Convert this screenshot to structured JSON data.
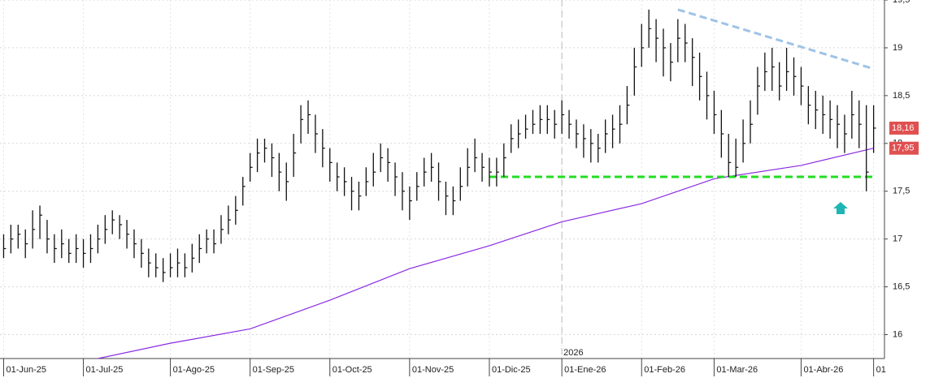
{
  "chart_data": {
    "type": "ohlc",
    "color": "#111111",
    "ylim": [
      15.75,
      19.5
    ],
    "yticks": [
      16,
      {
        "value": 16.5,
        "label": "16,5"
      },
      17,
      {
        "value": 17.5,
        "label": "17,5"
      },
      18,
      {
        "value": 18.5,
        "label": "18,5"
      },
      19,
      {
        "value": 19.5,
        "label": "19,5"
      }
    ],
    "xlim": [
      -0.5,
      121.5
    ],
    "xticks": [
      {
        "value": 0,
        "label": "01-Jun-25"
      },
      {
        "value": 11,
        "label": "01-Jul-25"
      },
      {
        "value": 23,
        "label": "01-Ago-25"
      },
      {
        "value": 34,
        "label": "01-Sep-25"
      },
      {
        "value": 45,
        "label": "01-Oct-25"
      },
      {
        "value": 56,
        "label": "01-Nov-25"
      },
      {
        "value": 67,
        "label": "01-Dic-25"
      },
      {
        "value": 77,
        "label": "01-Ene-26"
      },
      {
        "value": 88,
        "label": "01-Feb-26"
      },
      {
        "value": 98,
        "label": "01-Mar-26"
      },
      {
        "value": 110,
        "label": "01-Abr-26"
      },
      {
        "value": 120,
        "label": "01"
      }
    ],
    "grid": true,
    "year_marker": {
      "x": 77,
      "label": "2026"
    },
    "high": [
      17.05,
      17.15,
      17.15,
      17.1,
      17.3,
      17.35,
      17.2,
      17.05,
      17.1,
      17.0,
      17.05,
      17.0,
      17.05,
      17.15,
      17.25,
      17.3,
      17.25,
      17.2,
      17.1,
      17.0,
      16.9,
      16.85,
      16.8,
      16.85,
      16.9,
      16.85,
      16.95,
      17.05,
      17.1,
      17.1,
      17.25,
      17.35,
      17.45,
      17.65,
      17.9,
      18.05,
      18.05,
      18.0,
      17.9,
      17.8,
      18.1,
      18.4,
      18.45,
      18.3,
      18.15,
      17.95,
      17.8,
      17.75,
      17.65,
      17.6,
      17.75,
      17.9,
      18.0,
      17.95,
      17.8,
      17.7,
      17.55,
      17.7,
      17.85,
      17.9,
      17.8,
      17.6,
      17.55,
      17.75,
      17.95,
      18.05,
      17.9,
      17.85,
      17.85,
      18.0,
      18.2,
      18.25,
      18.3,
      18.35,
      18.4,
      18.4,
      18.35,
      18.45,
      18.35,
      18.25,
      18.2,
      18.15,
      18.1,
      18.25,
      18.3,
      18.4,
      18.6,
      19.0,
      19.25,
      19.4,
      19.3,
      19.2,
      19.05,
      19.3,
      19.25,
      19.1,
      18.95,
      18.75,
      18.55,
      18.35,
      18.1,
      18.05,
      18.25,
      18.45,
      18.8,
      18.95,
      19.0,
      18.85,
      19.0,
      18.9,
      18.8,
      18.6,
      18.55,
      18.5,
      18.45,
      18.4,
      18.3,
      18.55,
      18.45,
      18.4,
      18.4
    ],
    "low": [
      16.8,
      16.85,
      16.9,
      16.8,
      16.9,
      17.0,
      16.85,
      16.75,
      16.8,
      16.75,
      16.75,
      16.7,
      16.75,
      16.85,
      16.95,
      17.05,
      17.0,
      16.9,
      16.8,
      16.7,
      16.6,
      16.6,
      16.55,
      16.6,
      16.6,
      16.6,
      16.65,
      16.75,
      16.85,
      16.85,
      16.95,
      17.05,
      17.15,
      17.35,
      17.6,
      17.7,
      17.8,
      17.65,
      17.5,
      17.4,
      17.65,
      18.0,
      18.1,
      17.9,
      17.75,
      17.6,
      17.5,
      17.45,
      17.3,
      17.3,
      17.45,
      17.55,
      17.7,
      17.6,
      17.45,
      17.3,
      17.2,
      17.4,
      17.55,
      17.6,
      17.4,
      17.25,
      17.25,
      17.4,
      17.55,
      17.7,
      17.6,
      17.55,
      17.55,
      17.65,
      17.9,
      17.95,
      18.05,
      18.1,
      18.1,
      18.1,
      18.05,
      18.1,
      18.05,
      17.95,
      17.85,
      17.8,
      17.8,
      17.9,
      17.95,
      18.0,
      18.2,
      18.5,
      18.8,
      19.0,
      18.85,
      18.7,
      18.65,
      18.85,
      18.85,
      18.6,
      18.45,
      18.25,
      18.1,
      17.85,
      17.65,
      17.65,
      17.8,
      18.0,
      18.3,
      18.55,
      18.55,
      18.45,
      18.55,
      18.5,
      18.4,
      18.2,
      18.15,
      18.1,
      18.05,
      17.95,
      17.9,
      18.05,
      17.95,
      17.5,
      17.9
    ],
    "close": [
      16.9,
      17.0,
      17.05,
      16.95,
      17.1,
      17.25,
      17.0,
      16.9,
      16.95,
      16.85,
      16.9,
      16.85,
      16.9,
      17.0,
      17.1,
      17.2,
      17.15,
      17.05,
      16.95,
      16.85,
      16.75,
      16.7,
      16.65,
      16.7,
      16.75,
      16.7,
      16.8,
      16.9,
      17.0,
      16.95,
      17.1,
      17.2,
      17.3,
      17.55,
      17.75,
      17.9,
      17.95,
      17.85,
      17.7,
      17.6,
      17.9,
      18.25,
      18.3,
      18.1,
      17.95,
      17.8,
      17.65,
      17.6,
      17.5,
      17.45,
      17.6,
      17.7,
      17.85,
      17.8,
      17.65,
      17.5,
      17.4,
      17.55,
      17.7,
      17.75,
      17.6,
      17.45,
      17.4,
      17.55,
      17.75,
      17.85,
      17.75,
      17.7,
      17.7,
      17.85,
      18.05,
      18.1,
      18.15,
      18.2,
      18.25,
      18.25,
      18.2,
      18.3,
      18.2,
      18.1,
      18.05,
      18.0,
      17.95,
      18.1,
      18.15,
      18.2,
      18.4,
      18.8,
      19.0,
      19.2,
      19.1,
      19.0,
      18.85,
      19.1,
      19.05,
      18.9,
      18.7,
      18.5,
      18.3,
      18.1,
      17.8,
      17.75,
      18.0,
      18.2,
      18.6,
      18.75,
      18.8,
      18.6,
      18.75,
      18.7,
      18.6,
      18.4,
      18.35,
      18.3,
      18.25,
      18.2,
      18.1,
      18.3,
      18.2,
      17.7,
      18.16
    ],
    "lines": [
      {
        "color": "#8a2be2",
        "dash": false,
        "x": [
          13,
          23,
          34,
          45,
          56,
          67,
          77,
          88,
          98,
          110,
          120
        ],
        "values": [
          15.75,
          15.91,
          16.06,
          16.36,
          16.69,
          16.93,
          17.18,
          17.37,
          17.63,
          17.77,
          17.95
        ]
      },
      {
        "color": "#22dd22",
        "dash": true,
        "x": [
          67,
          120
        ],
        "values": [
          17.65,
          17.65
        ]
      },
      {
        "color": "#9ec3e6",
        "dash": true,
        "x": [
          93,
          120
        ],
        "values": [
          19.4,
          18.78
        ]
      }
    ],
    "price_tags": [
      {
        "value": 18.16,
        "label": "18,16"
      },
      {
        "value": 17.95,
        "label": "17,95"
      }
    ]
  }
}
